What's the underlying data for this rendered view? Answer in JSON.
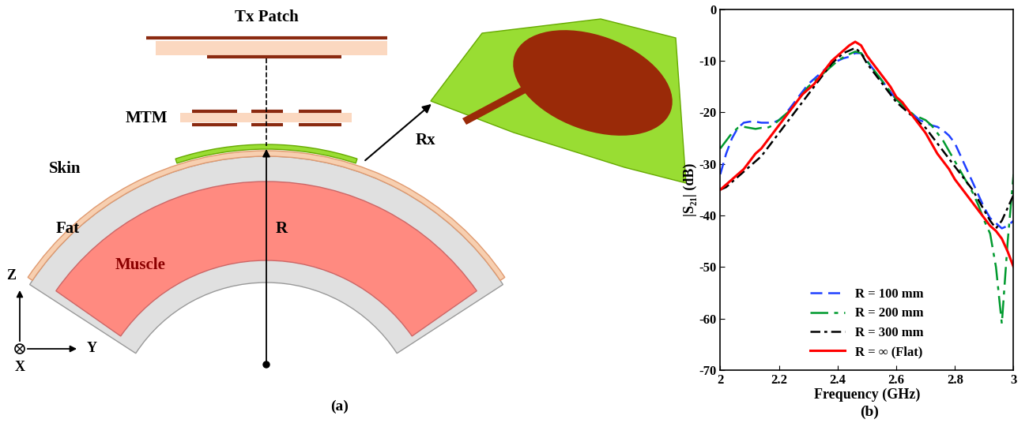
{
  "diagram": {
    "tx": "Tx Patch",
    "mtm": "MTM",
    "rx": "Rx",
    "skin": "Skin",
    "fat": "Fat",
    "muscle": "Muscle",
    "radius": "R",
    "axes": [
      "Z",
      "Y",
      "X"
    ],
    "caption": "(a)"
  },
  "chart_data": {
    "type": "line",
    "annotations": [
      "(b)"
    ],
    "x_label": "Frequency (GHz)",
    "y_label": "|S₂₁| (dB)",
    "xlim": [
      2,
      3
    ],
    "xticks": [
      2,
      2.2,
      2.4,
      2.6,
      2.8,
      3
    ],
    "ylim": [
      -70,
      0
    ],
    "yticks": [
      -70,
      -60,
      -50,
      -40,
      -30,
      -20,
      -10,
      0
    ],
    "grid": false,
    "legend": "lower center",
    "x": [
      2.0,
      2.02,
      2.04,
      2.06,
      2.08,
      2.1,
      2.12,
      2.14,
      2.16,
      2.18,
      2.2,
      2.22,
      2.24,
      2.26,
      2.28,
      2.3,
      2.32,
      2.34,
      2.36,
      2.38,
      2.4,
      2.42,
      2.44,
      2.46,
      2.48,
      2.5,
      2.52,
      2.54,
      2.56,
      2.58,
      2.6,
      2.62,
      2.64,
      2.66,
      2.68,
      2.7,
      2.72,
      2.74,
      2.76,
      2.78,
      2.8,
      2.82,
      2.84,
      2.86,
      2.88,
      2.9,
      2.92,
      2.94,
      2.96,
      2.98,
      3.0
    ],
    "series": [
      {
        "name": "R = 100 mm",
        "color": "#1f3fff",
        "line_style": "dashed",
        "values": [
          -32,
          -28,
          -25,
          -23,
          -22,
          -21.8,
          -21.8,
          -22,
          -22,
          -22,
          -21.5,
          -20.5,
          -19,
          -17.5,
          -16,
          -14.5,
          -13.5,
          -12.5,
          -11.5,
          -10.5,
          -10,
          -9.5,
          -9.2,
          -8.5,
          -8.5,
          -10,
          -11.5,
          -13,
          -14.5,
          -16,
          -17.5,
          -18.5,
          -19.5,
          -20.5,
          -21.5,
          -22,
          -22.5,
          -22.8,
          -23.5,
          -24.5,
          -26,
          -28.5,
          -31,
          -33.5,
          -36,
          -38.5,
          -40.5,
          -41.5,
          -42.5,
          -42,
          -41
        ]
      },
      {
        "name": "R = 200 mm",
        "color": "#009a2e",
        "line_style": "dashdot",
        "values": [
          -27,
          -25.5,
          -24,
          -23,
          -22.8,
          -23,
          -23.2,
          -23,
          -23,
          -22.5,
          -21.5,
          -20.5,
          -19.5,
          -18,
          -16.5,
          -15,
          -14,
          -13,
          -12,
          -11,
          -10,
          -9.3,
          -8.7,
          -8.2,
          -8.5,
          -10,
          -11.5,
          -13,
          -14.5,
          -16,
          -17.5,
          -18.5,
          -19.5,
          -20.5,
          -21,
          -21.5,
          -22.5,
          -24,
          -25.5,
          -27.5,
          -29.5,
          -31.5,
          -33.5,
          -35.5,
          -38,
          -41,
          -43.5,
          -50,
          -61,
          -45,
          -32
        ]
      },
      {
        "name": "R = 300 mm",
        "color": "#000000",
        "line_style": "densely_dashdot",
        "values": [
          -35,
          -34.5,
          -33.5,
          -32.5,
          -31.5,
          -30.5,
          -29.5,
          -28.5,
          -27,
          -25.5,
          -24,
          -22.5,
          -21,
          -19.5,
          -18,
          -16.5,
          -15,
          -13.5,
          -12,
          -10.5,
          -9.5,
          -8.5,
          -8,
          -7.5,
          -8.5,
          -10.5,
          -12,
          -13.5,
          -15,
          -16.5,
          -18,
          -19,
          -20,
          -21,
          -22,
          -23,
          -24.5,
          -26,
          -27.5,
          -29,
          -30.5,
          -32,
          -33.5,
          -35,
          -37,
          -39,
          -41,
          -42.5,
          -41,
          -38.5,
          -36
        ]
      },
      {
        "name": "R = ∞ (Flat)",
        "color": "#ff0000",
        "line_style": "solid",
        "values": [
          -35,
          -34,
          -33,
          -32,
          -31,
          -29.5,
          -28,
          -27,
          -25.5,
          -24,
          -22.5,
          -21,
          -19.5,
          -18,
          -16.5,
          -15.5,
          -14.5,
          -13,
          -11.5,
          -10,
          -9,
          -8,
          -7,
          -6.3,
          -7,
          -9,
          -10.5,
          -12,
          -13.5,
          -15,
          -17,
          -18,
          -19.5,
          -21,
          -22.5,
          -24,
          -26,
          -28,
          -29.5,
          -31,
          -33,
          -34.5,
          -36,
          -37.5,
          -39,
          -40.5,
          -42,
          -43,
          -44.5,
          -47,
          -50
        ]
      }
    ]
  }
}
